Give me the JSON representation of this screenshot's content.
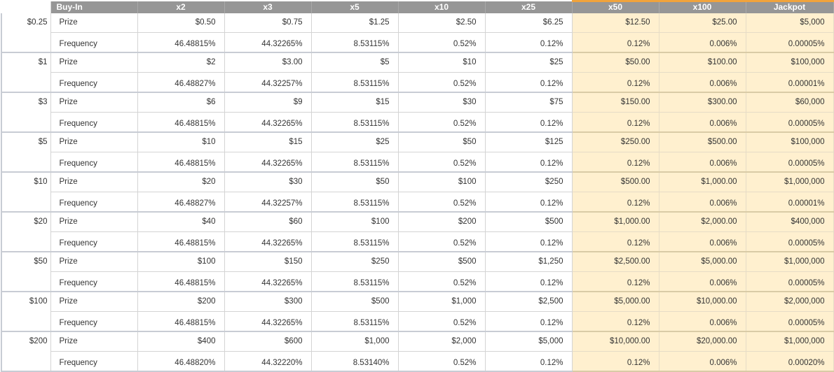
{
  "columns": [
    "Buy-In",
    "x2",
    "x3",
    "x5",
    "x10",
    "x25",
    "x50",
    "x100",
    "Jackpot"
  ],
  "row_labels": {
    "prize": "Prize",
    "frequency": "Frequency"
  },
  "colors": {
    "header_bg": "#969696",
    "highlight_bg": "#fff0cf",
    "highlight_border": "#f0a33c"
  },
  "rows": [
    {
      "buy_in": "$0.25",
      "prize": [
        "$0.50",
        "$0.75",
        "$1.25",
        "$2.50",
        "$6.25",
        "$12.50",
        "$25.00",
        "$5,000"
      ],
      "frequency": [
        "46.48815%",
        "44.32265%",
        "8.53115%",
        "0.52%",
        "0.12%",
        "0.12%",
        "0.006%",
        "0.00005%"
      ]
    },
    {
      "buy_in": "$1",
      "prize": [
        "$2",
        "$3.00",
        "$5",
        "$10",
        "$25",
        "$50.00",
        "$100.00",
        "$100,000"
      ],
      "frequency": [
        "46.48827%",
        "44.32257%",
        "8.53115%",
        "0.52%",
        "0.12%",
        "0.12%",
        "0.006%",
        "0.00001%"
      ]
    },
    {
      "buy_in": "$3",
      "prize": [
        "$6",
        "$9",
        "$15",
        "$30",
        "$75",
        "$150.00",
        "$300.00",
        "$60,000"
      ],
      "frequency": [
        "46.48815%",
        "44.32265%",
        "8.53115%",
        "0.52%",
        "0.12%",
        "0.12%",
        "0.006%",
        "0.00005%"
      ]
    },
    {
      "buy_in": "$5",
      "prize": [
        "$10",
        "$15",
        "$25",
        "$50",
        "$125",
        "$250.00",
        "$500.00",
        "$100,000"
      ],
      "frequency": [
        "46.48815%",
        "44.32265%",
        "8.53115%",
        "0.52%",
        "0.12%",
        "0.12%",
        "0.006%",
        "0.00005%"
      ]
    },
    {
      "buy_in": "$10",
      "prize": [
        "$20",
        "$30",
        "$50",
        "$100",
        "$250",
        "$500.00",
        "$1,000.00",
        "$1,000,000"
      ],
      "frequency": [
        "46.48827%",
        "44.32257%",
        "8.53115%",
        "0.52%",
        "0.12%",
        "0.12%",
        "0.006%",
        "0.00001%"
      ]
    },
    {
      "buy_in": "$20",
      "prize": [
        "$40",
        "$60",
        "$100",
        "$200",
        "$500",
        "$1,000.00",
        "$2,000.00",
        "$400,000"
      ],
      "frequency": [
        "46.48815%",
        "44.32265%",
        "8.53115%",
        "0.52%",
        "0.12%",
        "0.12%",
        "0.006%",
        "0.00005%"
      ]
    },
    {
      "buy_in": "$50",
      "prize": [
        "$100",
        "$150",
        "$250",
        "$500",
        "$1,250",
        "$2,500.00",
        "$5,000.00",
        "$1,000,000"
      ],
      "frequency": [
        "46.48815%",
        "44.32265%",
        "8.53115%",
        "0.52%",
        "0.12%",
        "0.12%",
        "0.006%",
        "0.00005%"
      ]
    },
    {
      "buy_in": "$100",
      "prize": [
        "$200",
        "$300",
        "$500",
        "$1,000",
        "$2,500",
        "$5,000.00",
        "$10,000.00",
        "$2,000,000"
      ],
      "frequency": [
        "46.48815%",
        "44.32265%",
        "8.53115%",
        "0.52%",
        "0.12%",
        "0.12%",
        "0.006%",
        "0.00005%"
      ]
    },
    {
      "buy_in": "$200",
      "prize": [
        "$400",
        "$600",
        "$1,000",
        "$2,000",
        "$5,000",
        "$10,000.00",
        "$20,000.00",
        "$1,000,000"
      ],
      "frequency": [
        "46.48820%",
        "44.32220%",
        "8.53140%",
        "0.52%",
        "0.12%",
        "0.12%",
        "0.006%",
        "0.00020%"
      ]
    }
  ]
}
